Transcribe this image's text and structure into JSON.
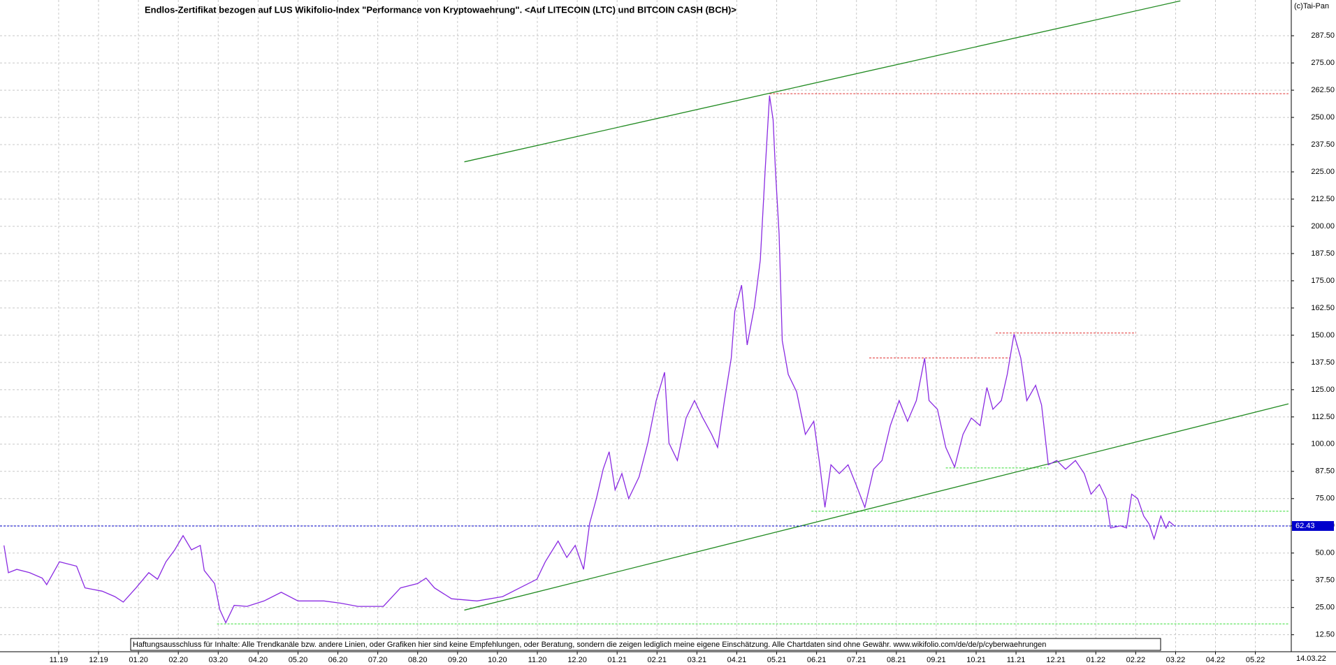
{
  "chart_data": {
    "type": "line",
    "title": "Endlos-Zertifikat bezogen auf LUS Wikifolio-Index \"Performance von Kryptowaehrung\". <Auf LITECOIN (LTC) und BITCOIN CASH (BCH)>",
    "copyright": "(c)Tai-Pan",
    "disclaimer": "Haftungsausschluss für Inhalte: Alle Trendkanäle bzw. andere Linien, oder Grafiken hier sind keine Empfehlungen, oder Beratung, sondern die zeigen lediglich meine eigene Einschätzung. Alle Chartdaten sind ohne Gewähr.  www.wikifolio.com/de/de/p/cyberwaehrungen",
    "date_label": "14.03.22",
    "color": "#8a2be2",
    "grid": true,
    "xlim": [
      -1.47,
      30.9
    ],
    "ylim": [
      4.7,
      303.9
    ],
    "xticks": [
      {
        "value": 0,
        "label": "11.19"
      },
      {
        "value": 1,
        "label": "12.19"
      },
      {
        "value": 2,
        "label": "01.20"
      },
      {
        "value": 3,
        "label": "02.20"
      },
      {
        "value": 4,
        "label": "03.20"
      },
      {
        "value": 5,
        "label": "04.20"
      },
      {
        "value": 6,
        "label": "05.20"
      },
      {
        "value": 7,
        "label": "06.20"
      },
      {
        "value": 8,
        "label": "07.20"
      },
      {
        "value": 9,
        "label": "08.20"
      },
      {
        "value": 10,
        "label": "09.20"
      },
      {
        "value": 11,
        "label": "10.20"
      },
      {
        "value": 12,
        "label": "11.20"
      },
      {
        "value": 13,
        "label": "12.20"
      },
      {
        "value": 14,
        "label": "01.21"
      },
      {
        "value": 15,
        "label": "02.21"
      },
      {
        "value": 16,
        "label": "03.21"
      },
      {
        "value": 17,
        "label": "04.21"
      },
      {
        "value": 18,
        "label": "05.21"
      },
      {
        "value": 19,
        "label": "06.21"
      },
      {
        "value": 20,
        "label": "07.21"
      },
      {
        "value": 21,
        "label": "08.21"
      },
      {
        "value": 22,
        "label": "09.21"
      },
      {
        "value": 23,
        "label": "10.21"
      },
      {
        "value": 24,
        "label": "11.21"
      },
      {
        "value": 25,
        "label": "12.21"
      },
      {
        "value": 26,
        "label": "01.22"
      },
      {
        "value": 27,
        "label": "02.22"
      },
      {
        "value": 28,
        "label": "03.22"
      },
      {
        "value": 29,
        "label": "04.22"
      },
      {
        "value": 30,
        "label": "05.22"
      }
    ],
    "yticks": [
      {
        "value": 12.5,
        "label": "12.50"
      },
      {
        "value": 25,
        "label": "25.00"
      },
      {
        "value": 37.5,
        "label": "37.50"
      },
      {
        "value": 50,
        "label": "50.00"
      },
      {
        "value": 62.5,
        "label": "62.50"
      },
      {
        "value": 75,
        "label": "75.00"
      },
      {
        "value": 87.5,
        "label": "87.50"
      },
      {
        "value": 100,
        "label": "100.00"
      },
      {
        "value": 112.5,
        "label": "112.50"
      },
      {
        "value": 125,
        "label": "125.00"
      },
      {
        "value": 137.5,
        "label": "137.50"
      },
      {
        "value": 150,
        "label": "150.00"
      },
      {
        "value": 162.5,
        "label": "162.50"
      },
      {
        "value": 175,
        "label": "175.00"
      },
      {
        "value": 187.5,
        "label": "187.50"
      },
      {
        "value": 200,
        "label": "200.00"
      },
      {
        "value": 212.5,
        "label": "212.50"
      },
      {
        "value": 225,
        "label": "225.00"
      },
      {
        "value": 237.5,
        "label": "237.50"
      },
      {
        "value": 250,
        "label": "250.00"
      },
      {
        "value": 262.5,
        "label": "262.50"
      },
      {
        "value": 275,
        "label": "275.00"
      },
      {
        "value": 287.5,
        "label": "287.50"
      }
    ],
    "x": [
      -1.37,
      -1.26,
      -1.05,
      -0.73,
      -0.41,
      -0.3,
      0.02,
      0.45,
      0.66,
      1.09,
      1.41,
      1.62,
      1.94,
      2.26,
      2.48,
      2.69,
      2.91,
      3.12,
      3.33,
      3.55,
      3.65,
      3.91,
      4.04,
      4.19,
      4.4,
      4.72,
      5.15,
      5.58,
      6.0,
      6.65,
      7.07,
      7.5,
      8.14,
      8.57,
      9.0,
      9.21,
      9.42,
      9.85,
      10.49,
      11.13,
      11.56,
      11.99,
      12.2,
      12.52,
      12.74,
      12.95,
      13.16,
      13.31,
      13.48,
      13.65,
      13.8,
      13.95,
      14.12,
      14.29,
      14.55,
      14.77,
      14.98,
      15.19,
      15.3,
      15.51,
      15.73,
      15.94,
      16.15,
      16.37,
      16.52,
      16.69,
      16.86,
      16.95,
      17.12,
      17.26,
      17.44,
      17.59,
      17.71,
      17.82,
      17.91,
      17.97,
      18.06,
      18.14,
      18.29,
      18.5,
      18.72,
      18.93,
      19.08,
      19.21,
      19.36,
      19.57,
      19.79,
      20.0,
      20.21,
      20.43,
      20.64,
      20.85,
      21.07,
      21.28,
      21.5,
      21.71,
      21.82,
      22.03,
      22.24,
      22.46,
      22.67,
      22.88,
      23.1,
      23.27,
      23.42,
      23.63,
      23.78,
      23.95,
      24.12,
      24.27,
      24.49,
      24.64,
      24.81,
      25.02,
      25.24,
      25.49,
      25.71,
      25.88,
      26.09,
      26.26,
      26.37,
      26.62,
      26.77,
      26.9,
      27.05,
      27.2,
      27.33,
      27.46,
      27.63,
      27.76,
      27.84,
      27.97
    ],
    "values": [
      53.5,
      41,
      42.5,
      41,
      38.5,
      35.5,
      46,
      44,
      34,
      32.5,
      30,
      27.5,
      34,
      41,
      38,
      46,
      51.5,
      58,
      51.5,
      53.5,
      42,
      36,
      24,
      18,
      26,
      25.5,
      28,
      32,
      28,
      28,
      27,
      25.5,
      25.5,
      34,
      36,
      38.5,
      34,
      29,
      28,
      30,
      34,
      38,
      46,
      55.5,
      48,
      53.5,
      42.5,
      63.5,
      75,
      88.5,
      96.5,
      79,
      86.5,
      75,
      85,
      100.5,
      120,
      133,
      100.5,
      92.5,
      112,
      120,
      112,
      104.5,
      98.5,
      120,
      139.5,
      161,
      173,
      145.5,
      163,
      184.5,
      225.5,
      260,
      249,
      225.5,
      196.5,
      147.5,
      132,
      124,
      104.5,
      110.5,
      90.5,
      71,
      90.5,
      86.5,
      90.5,
      81,
      71,
      88.5,
      92.5,
      108.5,
      120,
      110.5,
      120,
      139.5,
      120,
      116,
      98.5,
      89.5,
      104.5,
      112,
      108.5,
      126,
      116,
      120,
      132,
      150.5,
      139.5,
      120,
      127,
      118,
      90.5,
      92.5,
      88.5,
      92.5,
      86.5,
      77,
      81.5,
      75,
      61.5,
      62.5,
      61.5,
      77,
      75,
      67,
      63.5,
      56.5,
      67,
      61.5,
      64.5,
      62.5
    ],
    "current": {
      "value": 62.43,
      "label": "62.43",
      "color": "#0000cc"
    },
    "trendlines": [
      {
        "color": "#228b22",
        "x": [
          10.17,
          28.12
        ],
        "y": [
          229.6,
          303.5
        ]
      },
      {
        "color": "#228b22",
        "x": [
          10.17,
          30.83
        ],
        "y": [
          23.8,
          118.5
        ]
      }
    ],
    "levels": [
      {
        "color": "#e03030",
        "y": 260.9,
        "x": [
          17.82,
          30.83
        ]
      },
      {
        "color": "#e03030",
        "y": 139.6,
        "x": [
          20.32,
          23.85
        ]
      },
      {
        "color": "#e03030",
        "y": 151,
        "x": [
          23.49,
          27.01
        ]
      },
      {
        "color": "#33dd33",
        "y": 17.5,
        "x": [
          3.97,
          30.83
        ]
      },
      {
        "color": "#33dd33",
        "y": 69.2,
        "x": [
          18.87,
          30.83
        ]
      },
      {
        "color": "#33dd33",
        "y": 89.1,
        "x": [
          22.24,
          24.81
        ]
      }
    ]
  }
}
